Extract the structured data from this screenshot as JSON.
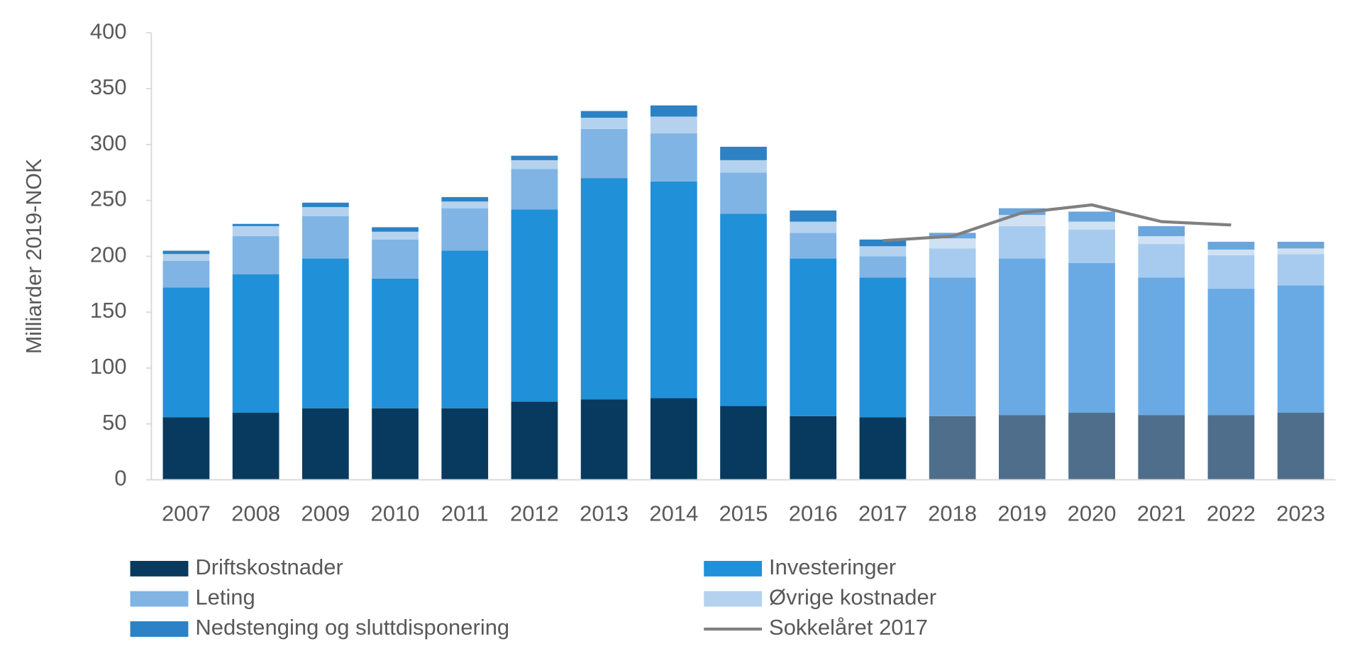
{
  "chart_data": {
    "type": "stacked_bar",
    "y_label": "Milliarder 2019-NOK",
    "categories": [
      "2007",
      "2008",
      "2009",
      "2010",
      "2011",
      "2012",
      "2013",
      "2014",
      "2015",
      "2016",
      "2017",
      "2018",
      "2019",
      "2020",
      "2021",
      "2022",
      "2023"
    ],
    "series": [
      {
        "name": "Driftskostnader",
        "color": "#073a5e",
        "values": [
          56,
          60,
          64,
          64,
          64,
          70,
          72,
          73,
          66,
          57,
          56,
          57,
          58,
          60,
          58,
          58,
          60
        ],
        "colors": [
          "#073a5e",
          "#073a5e",
          "#073a5e",
          "#073a5e",
          "#073a5e",
          "#073a5e",
          "#073a5e",
          "#073a5e",
          "#073a5e",
          "#073a5e",
          "#073a5e",
          "#4f6e8c",
          "#4f6e8c",
          "#4f6e8c",
          "#4f6e8c",
          "#4f6e8c",
          "#4f6e8c"
        ]
      },
      {
        "name": "Investeringer",
        "color": "#2090d8",
        "values": [
          116,
          124,
          134,
          116,
          141,
          172,
          198,
          194,
          172,
          141,
          125,
          124,
          140,
          134,
          123,
          113,
          114
        ],
        "colors": [
          "#2090d8",
          "#2090d8",
          "#2090d8",
          "#2090d8",
          "#2090d8",
          "#2090d8",
          "#2090d8",
          "#2090d8",
          "#2090d8",
          "#2090d8",
          "#2090d8",
          "#6aaae4",
          "#6aaae4",
          "#6aaae4",
          "#6aaae4",
          "#6aaae4",
          "#6aaae4"
        ]
      },
      {
        "name": "Leting",
        "color": "#80b4e4",
        "values": [
          24,
          34,
          38,
          35,
          38,
          36,
          44,
          43,
          37,
          23,
          19,
          26,
          29,
          30,
          30,
          30,
          28
        ],
        "colors": [
          "#80b4e4",
          "#80b4e4",
          "#80b4e4",
          "#80b4e4",
          "#80b4e4",
          "#80b4e4",
          "#80b4e4",
          "#80b4e4",
          "#80b4e4",
          "#80b4e4",
          "#80b4e4",
          "#a6cbee",
          "#a6cbee",
          "#a6cbee",
          "#a6cbee",
          "#a6cbee",
          "#a6cbee"
        ]
      },
      {
        "name": "Øvrige kostnader",
        "color": "#b4d2ee",
        "values": [
          6,
          9,
          8,
          7,
          6,
          8,
          10,
          15,
          11,
          10,
          9,
          9,
          10,
          7,
          7,
          5,
          5
        ],
        "colors": [
          "#b4d2ee",
          "#b4d2ee",
          "#b4d2ee",
          "#b4d2ee",
          "#b4d2ee",
          "#b4d2ee",
          "#b4d2ee",
          "#b4d2ee",
          "#b4d2ee",
          "#b4d2ee",
          "#b4d2ee",
          "#cfe1f3",
          "#cfe1f3",
          "#cfe1f3",
          "#cfe1f3",
          "#cfe1f3",
          "#cfe1f3"
        ]
      },
      {
        "name": "Nedstenging og sluttdisponering",
        "color": "#2c82c4",
        "values": [
          3,
          2,
          4,
          4,
          4,
          4,
          6,
          10,
          12,
          10,
          6,
          5,
          6,
          9,
          9,
          7,
          6
        ],
        "colors": [
          "#2c82c4",
          "#2c82c4",
          "#2c82c4",
          "#2c82c4",
          "#2c82c4",
          "#2c82c4",
          "#2c82c4",
          "#2c82c4",
          "#2c82c4",
          "#2c82c4",
          "#2c82c4",
          "#6aa6dc",
          "#6aa6dc",
          "#6aa6dc",
          "#6aa6dc",
          "#6aa6dc",
          "#6aa6dc"
        ]
      },
      {
        "name": "Sokkelåret 2017",
        "type": "line",
        "color": "#808080",
        "values": [
          null,
          null,
          null,
          null,
          null,
          null,
          null,
          null,
          null,
          null,
          214,
          218,
          239,
          246,
          231,
          228,
          null
        ]
      }
    ],
    "ylim": [
      0,
      400
    ],
    "yticks": [
      0,
      50,
      100,
      150,
      200,
      250,
      300,
      350,
      400
    ],
    "grid": false
  }
}
